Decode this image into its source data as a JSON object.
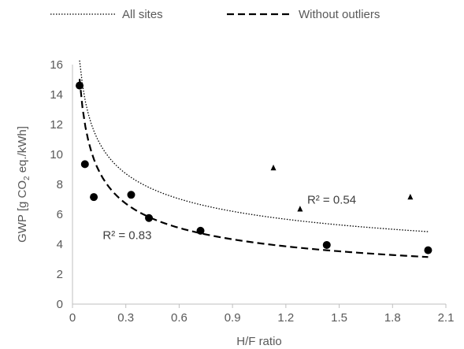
{
  "chart_data": {
    "type": "scatter",
    "title": "",
    "xlabel": "H/F ratio",
    "ylabel_parts": [
      "GWP [g CO",
      "2",
      " eq./kWh]"
    ],
    "xlim": [
      0,
      2.1
    ],
    "ylim": [
      0,
      16
    ],
    "x_ticks": [
      "0",
      "0.3",
      "0.6",
      "0.9",
      "1.2",
      "1.5",
      "1.8",
      "2.1"
    ],
    "y_ticks": [
      "0",
      "2",
      "4",
      "6",
      "8",
      "10",
      "12",
      "14",
      "16"
    ],
    "grid": false,
    "legend_position": "top",
    "legend": [
      {
        "label": "All sites",
        "style": "dotted"
      },
      {
        "label": "Without outliers",
        "style": "dashed"
      }
    ],
    "series": [
      {
        "marker": "circle",
        "points": [
          {
            "x": 0.04,
            "y": 14.6
          },
          {
            "x": 0.07,
            "y": 9.35
          },
          {
            "x": 0.12,
            "y": 7.15
          },
          {
            "x": 0.33,
            "y": 7.3
          },
          {
            "x": 0.43,
            "y": 5.75
          },
          {
            "x": 0.72,
            "y": 4.9
          },
          {
            "x": 1.43,
            "y": 3.95
          },
          {
            "x": 2.0,
            "y": 3.6
          }
        ]
      },
      {
        "marker": "triangle",
        "points": [
          {
            "x": 1.13,
            "y": 9.1
          },
          {
            "x": 1.28,
            "y": 6.35
          },
          {
            "x": 1.9,
            "y": 7.15
          }
        ]
      }
    ],
    "trendlines": [
      {
        "legend": "All sites",
        "model": "power",
        "a": 6.0,
        "b": -0.31,
        "x_range": [
          0.04,
          2.0
        ],
        "style": "dotted",
        "r2_label": "R² = 0.54",
        "label_at": {
          "x": 1.32,
          "y": 6.7
        }
      },
      {
        "legend": "Without outliers",
        "model": "power",
        "a": 4.15,
        "b": -0.4,
        "x_range": [
          0.04,
          2.0
        ],
        "style": "dashed",
        "r2_label": "R² = 0.83",
        "label_at": {
          "x": 0.17,
          "y": 4.35
        }
      }
    ]
  }
}
